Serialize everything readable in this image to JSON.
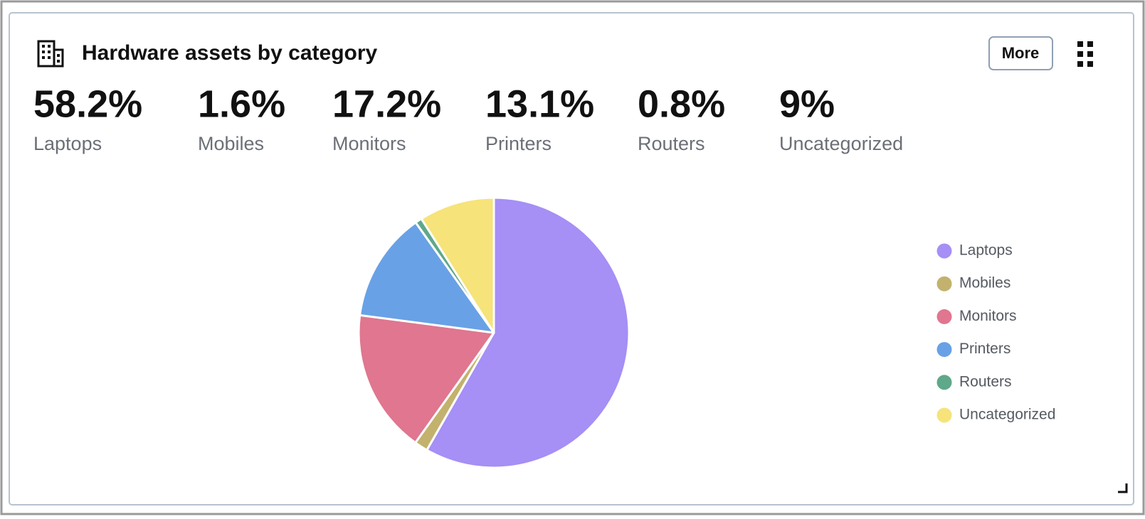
{
  "chart_data": {
    "type": "pie",
    "title": "Hardware assets by category",
    "categories": [
      "Laptops",
      "Mobiles",
      "Monitors",
      "Printers",
      "Routers",
      "Uncategorized"
    ],
    "values": [
      58.2,
      1.6,
      17.2,
      13.1,
      0.8,
      9
    ],
    "value_labels": [
      "58.2%",
      "1.6%",
      "17.2%",
      "13.1%",
      "0.8%",
      "9%"
    ],
    "colors": [
      "#a68ff5",
      "#c2b26d",
      "#e0768f",
      "#69a1e6",
      "#5fa88a",
      "#f6e37a"
    ],
    "legend": "right"
  },
  "ui": {
    "more_button": "More"
  }
}
